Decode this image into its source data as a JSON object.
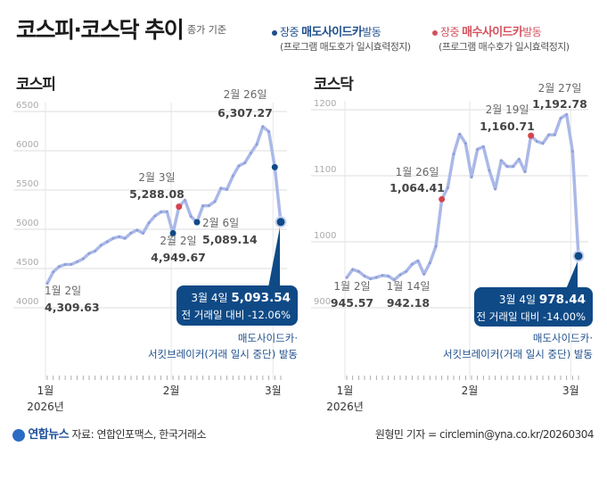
{
  "header": {
    "title": "코스피·코스닥 추이",
    "basis": "종가 기준",
    "legend": [
      {
        "prefix": "장중 ",
        "strong": "매도사이드카",
        "suffix": "발동",
        "note": "(프로그램 매도호가 일시효력정지)",
        "color": "#1d4e8c"
      },
      {
        "prefix": "장중 ",
        "strong": "매수사이드카",
        "suffix": "발동",
        "note": "(프로그램 매수호가 일시효력정지)",
        "color": "#d4505c"
      }
    ]
  },
  "colors": {
    "line": "#aab8e8",
    "point": "#8d9dd6",
    "sell": "#0f4a86",
    "buy": "#d4434e",
    "grid": "#dddddd"
  },
  "chart_data": [
    {
      "type": "line",
      "title": "코스피",
      "ylim": [
        4000,
        6500
      ],
      "yticks": [
        "4000",
        "4500",
        "5000",
        "5500",
        "6000",
        "6500"
      ],
      "grid": true,
      "xtick_labels": [
        "1월",
        "2월",
        "3월"
      ],
      "xyear": "2026년",
      "x": [
        "01-02",
        "01-05",
        "01-06",
        "01-07",
        "01-08",
        "01-09",
        "01-12",
        "01-13",
        "01-14",
        "01-15",
        "01-16",
        "01-19",
        "01-20",
        "01-21",
        "01-22",
        "01-23",
        "01-26",
        "01-27",
        "01-28",
        "01-29",
        "01-30",
        "02-02",
        "02-03",
        "02-04",
        "02-05",
        "02-06",
        "02-09",
        "02-10",
        "02-11",
        "02-12",
        "02-13",
        "02-19",
        "02-20",
        "02-23",
        "02-24",
        "02-25",
        "02-26",
        "02-27",
        "03-03",
        "03-04"
      ],
      "values": [
        4309.63,
        4457,
        4525,
        4551,
        4552,
        4586,
        4624,
        4692,
        4723,
        4797,
        4840,
        4885,
        4905,
        4885,
        4952,
        4990,
        4950,
        5084,
        5170,
        5221,
        5224,
        4949.67,
        5288.08,
        5371,
        5163,
        5089.14,
        5298,
        5301,
        5354,
        5522,
        5507,
        5677,
        5808,
        5846,
        5970,
        6083,
        6307.27,
        6244,
        5791,
        5093.54
      ],
      "markers": {
        "sell": [
          "02-02",
          "02-06",
          "03-03",
          "03-04"
        ],
        "buy": [
          "02-03"
        ]
      },
      "annotations": [
        {
          "date": "2월 26일",
          "value": "6,307.27"
        },
        {
          "date": "2월 3일",
          "value": "5,288.08"
        },
        {
          "date": "2월 2일",
          "value": "4,949.67"
        },
        {
          "date": "2월 6일",
          "value": "5,089.14"
        },
        {
          "date": "1월 2일",
          "value": "4,309.63"
        }
      ],
      "callout": {
        "date": "3월 4일",
        "value": "5,093.54",
        "change": "전 거래일 대비 -12.06%",
        "note1": "매도사이드카·",
        "note2": "서킷브레이커(거래 일시 중단) 발동"
      }
    },
    {
      "type": "line",
      "title": "코스닥",
      "ylim": [
        900,
        1200
      ],
      "yticks": [
        "900",
        "1000",
        "1100",
        "1200"
      ],
      "grid": true,
      "xtick_labels": [
        "1월",
        "2월",
        "3월"
      ],
      "xyear": "2026년",
      "x": [
        "01-02",
        "01-05",
        "01-06",
        "01-07",
        "01-08",
        "01-09",
        "01-12",
        "01-13",
        "01-14",
        "01-15",
        "01-16",
        "01-19",
        "01-20",
        "01-21",
        "01-22",
        "01-23",
        "01-26",
        "01-27",
        "01-28",
        "01-29",
        "01-30",
        "02-02",
        "02-03",
        "02-04",
        "02-05",
        "02-06",
        "02-09",
        "02-10",
        "02-11",
        "02-12",
        "02-13",
        "02-19",
        "02-20",
        "02-23",
        "02-24",
        "02-25",
        "02-26",
        "02-27",
        "03-03",
        "03-04"
      ],
      "values": [
        945.57,
        958,
        955,
        948,
        944,
        946,
        949,
        948,
        942.18,
        950,
        955,
        966,
        971,
        951,
        968,
        993,
        1064.41,
        1082,
        1133,
        1163,
        1149,
        1098,
        1140,
        1144,
        1108,
        1080,
        1123,
        1114,
        1114,
        1125,
        1106,
        1160.71,
        1152,
        1149,
        1162,
        1162,
        1187,
        1192.78,
        1137,
        978.44
      ],
      "markers": {
        "sell": [
          "03-04"
        ],
        "buy": [
          "01-26",
          "02-19"
        ]
      },
      "annotations": [
        {
          "date": "2월 27일",
          "value": "1,192.78"
        },
        {
          "date": "2월 19일",
          "value": "1,160.71"
        },
        {
          "date": "1월 26일",
          "value": "1,064.41"
        },
        {
          "date": "1월 2일",
          "value": "945.57"
        },
        {
          "date": "1월 14일",
          "value": "942.18"
        }
      ],
      "callout": {
        "date": "3월 4일",
        "value": "978.44",
        "change": "전 거래일 대비 -14.00%",
        "note1": "매도사이드카·",
        "note2": "서킷브레이커(거래 일시 중단) 발동"
      }
    }
  ],
  "footer": {
    "logo": "연합뉴스",
    "source": "자료: 연합인포맥스, 한국거래소",
    "credit": "원형민 기자 = circlemin@yna.co.kr/20260304"
  }
}
